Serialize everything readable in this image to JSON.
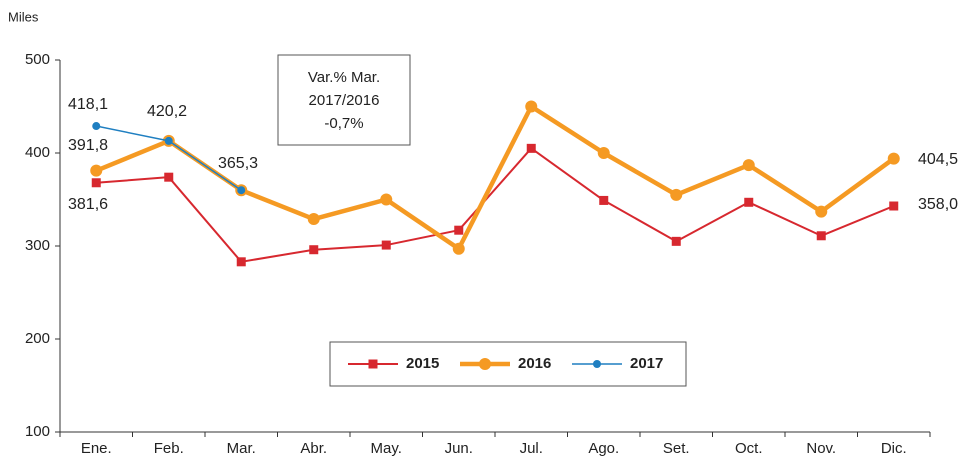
{
  "chart_data": {
    "type": "line",
    "y_label": "Miles",
    "categories": [
      "Ene.",
      "Feb.",
      "Mar.",
      "Abr.",
      "May.",
      "Jun.",
      "Jul.",
      "Ago.",
      "Set.",
      "Oct.",
      "Nov.",
      "Dic."
    ],
    "series": [
      {
        "name": "2015",
        "color": "#d7282f",
        "values": [
          368,
          374,
          283,
          296,
          301,
          317,
          405,
          349,
          305,
          347,
          311,
          343
        ]
      },
      {
        "name": "2016",
        "color": "#f59a23",
        "values": [
          381,
          413,
          360,
          329,
          350,
          297,
          450,
          400,
          355,
          387,
          337,
          394
        ]
      },
      {
        "name": "2017",
        "color": "#1f7fc1",
        "values": [
          429,
          413,
          360,
          null,
          null,
          null,
          null,
          null,
          null,
          null,
          null,
          null
        ]
      }
    ],
    "ylim": [
      100,
      500
    ],
    "yticks": [
      100,
      200,
      300,
      400,
      500
    ],
    "annotations": [
      "418,1",
      "391,8",
      "381,6",
      "420,2",
      "365,3",
      "404,5",
      "358,0"
    ],
    "box_text": [
      "Var.% Mar.",
      "2017/2016",
      "-0,7%"
    ],
    "legend": "bottom-center"
  }
}
